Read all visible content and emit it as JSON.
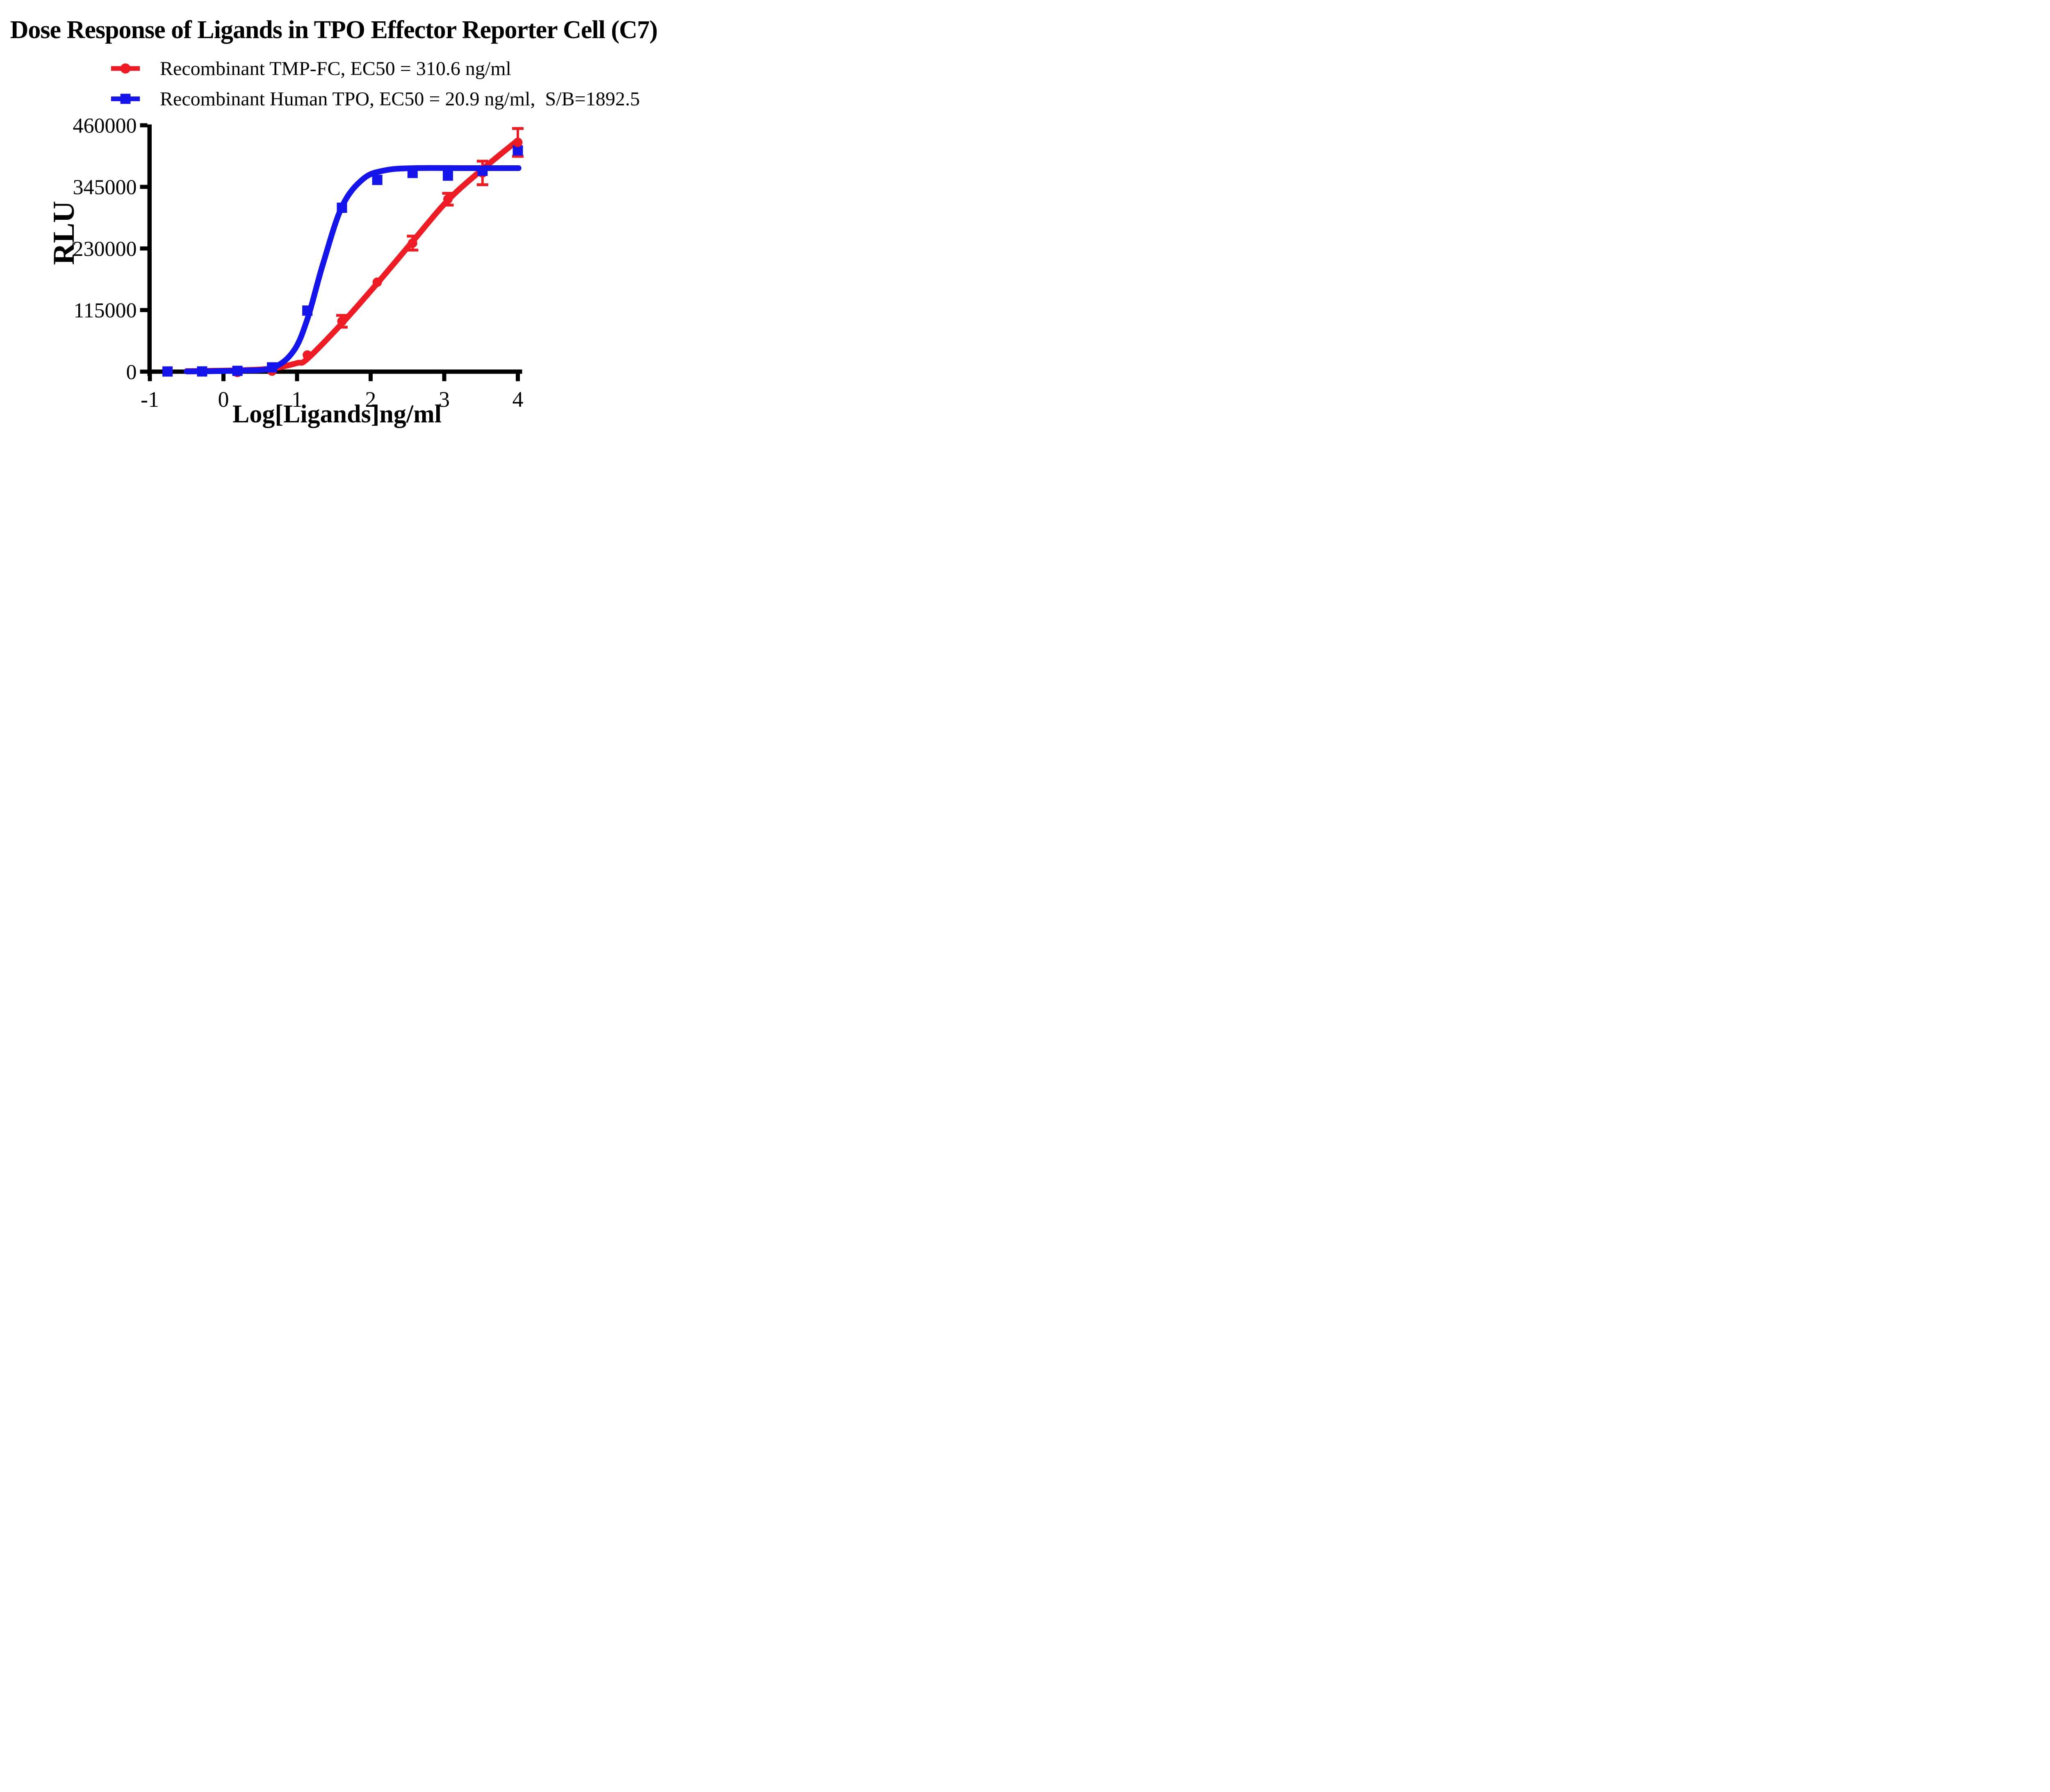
{
  "title": "Dose Response of Ligands in TPO Effector Reporter Cell (C7)",
  "colors": {
    "red": "#ED1C24",
    "blue": "#1414EB",
    "axis": "#000000",
    "background": "#FFFFFF"
  },
  "legend": [
    {
      "label": "Recombinant TMP-FC, EC50 = 310.6 ng/ml",
      "marker": "circle",
      "color_key": "red"
    },
    {
      "label": "Recombinant Human TPO, EC50 = 20.9 ng/ml,  S/B=1892.5",
      "marker": "square",
      "color_key": "blue"
    }
  ],
  "chart_data": {
    "type": "scatter",
    "subtype": "dose-response-curves",
    "title": "Dose Response of Ligands in TPO Effector Reporter Cell (C7)",
    "xlabel": "Log[Ligands]ng/ml",
    "ylabel": "RLU",
    "xlim": [
      -1.15,
      4.08
    ],
    "ylim": [
      0,
      460000
    ],
    "x_ticks": [
      -1,
      0,
      1,
      2,
      3,
      4
    ],
    "y_ticks": [
      0,
      115000,
      230000,
      345000,
      460000
    ],
    "grid": false,
    "legend_position": "above-plot-left",
    "series": [
      {
        "name": "Recombinant TMP-FC",
        "marker": "circle",
        "color_key": "red",
        "ec50_ng_ml": 310.6,
        "x": [
          -0.76,
          -0.29,
          0.19,
          0.66,
          1.14,
          1.61,
          2.09,
          2.57,
          3.05,
          3.52,
          4.0
        ],
        "y": [
          500,
          800,
          -1500,
          1000,
          31000,
          94000,
          167000,
          240000,
          322000,
          371000,
          428000
        ],
        "y_err": [
          0,
          0,
          0,
          0,
          0,
          11000,
          0,
          13000,
          11000,
          22000,
          26000
        ],
        "hidden_behind_other_series": [
          true,
          true,
          true,
          true,
          false,
          false,
          false,
          false,
          false,
          true,
          false
        ],
        "curve_anchors": [
          [
            -0.5,
            1000
          ],
          [
            0.2,
            2500
          ],
          [
            0.66,
            6000
          ],
          [
            1.0,
            16000
          ],
          [
            1.14,
            24000
          ],
          [
            1.61,
            90000
          ],
          [
            2.09,
            165000
          ],
          [
            2.57,
            243000
          ],
          [
            3.05,
            320000
          ],
          [
            3.52,
            378000
          ],
          [
            4.0,
            432000
          ]
        ],
        "fit": {
          "model": "4PL",
          "bottom": 0,
          "top": 452000,
          "log_ec50": 2.492
        }
      },
      {
        "name": "Recombinant Human TPO",
        "marker": "square",
        "color_key": "blue",
        "ec50_ng_ml": 20.9,
        "s_b": 1892.5,
        "x": [
          -0.76,
          -0.29,
          0.19,
          0.66,
          1.14,
          1.61,
          2.09,
          2.57,
          3.05,
          3.52,
          4.0
        ],
        "y": [
          300,
          400,
          1500,
          8000,
          114000,
          306000,
          358000,
          371000,
          366000,
          375000,
          413000
        ],
        "y_err": [
          0,
          0,
          0,
          0,
          0,
          0,
          0,
          0,
          0,
          0,
          0
        ],
        "hidden_behind_other_series": [
          false,
          false,
          false,
          false,
          false,
          false,
          false,
          false,
          false,
          false,
          false
        ],
        "curve_anchors": [
          [
            -0.5,
            400
          ],
          [
            0.19,
            1800
          ],
          [
            0.66,
            7000
          ],
          [
            0.95,
            38000
          ],
          [
            1.14,
            98000
          ],
          [
            1.35,
            200000
          ],
          [
            1.61,
            308000
          ],
          [
            1.9,
            360000
          ],
          [
            2.2,
            376000
          ],
          [
            2.6,
            380000
          ],
          [
            3.3,
            380000
          ],
          [
            4.01,
            380000
          ]
        ],
        "fit": {
          "model": "4PL",
          "bottom": 0,
          "top": 380000,
          "log_ec50": 1.32
        }
      }
    ]
  }
}
